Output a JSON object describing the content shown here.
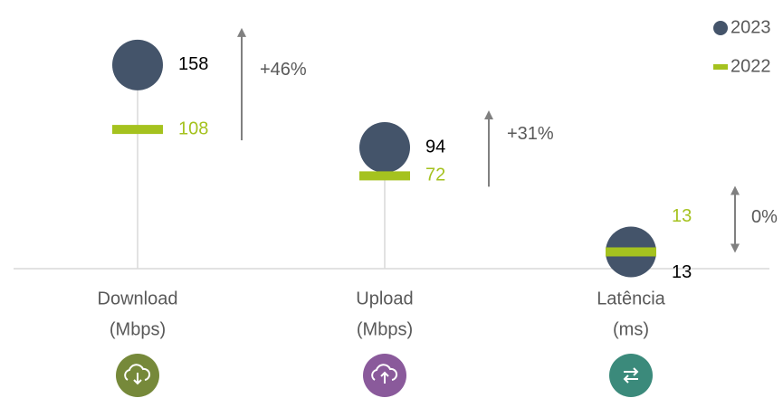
{
  "chart_data": {
    "type": "dot",
    "categories": [
      [
        "Download",
        "(Mbps)"
      ],
      [
        "Upload",
        "(Mbps)"
      ],
      [
        "Latência",
        "(ms)"
      ]
    ],
    "series": [
      {
        "name": "2023",
        "color": "#44546a",
        "values": [
          158,
          94,
          13
        ]
      },
      {
        "name": "2022",
        "color": "#a5c21f",
        "values": [
          108,
          72,
          13
        ]
      }
    ],
    "annotations": [
      "+46%",
      "+31%",
      "0%"
    ],
    "ylim": [
      0,
      200
    ],
    "legend": "top-right"
  }
}
